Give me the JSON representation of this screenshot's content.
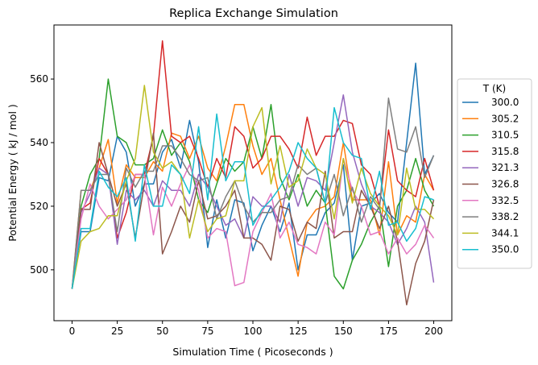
{
  "chart_data": {
    "type": "line",
    "title": "Replica Exchange Simulation",
    "xlabel": "Simulation Time ( Picoseconds )",
    "ylabel": "Potential Energy ( kJ / mol )",
    "xlim": [
      -10,
      210
    ],
    "ylim": [
      484,
      577
    ],
    "xticks": [
      0,
      25,
      50,
      75,
      100,
      125,
      150,
      175,
      200
    ],
    "yticks": [
      500,
      520,
      540,
      560
    ],
    "grid": false,
    "legend": {
      "title": "T (K)",
      "placement": "outside-right"
    },
    "x": [
      0,
      5,
      10,
      15,
      20,
      25,
      30,
      35,
      40,
      45,
      50,
      55,
      60,
      65,
      70,
      75,
      80,
      85,
      90,
      95,
      100,
      105,
      110,
      115,
      120,
      125,
      130,
      135,
      140,
      145,
      150,
      155,
      160,
      165,
      170,
      175,
      180,
      185,
      190,
      195,
      200
    ],
    "series": [
      {
        "name": "300.0",
        "color": "#1f77b4",
        "values": [
          494,
          512,
          512,
          529,
          528,
          542,
          537,
          520,
          527,
          527,
          537,
          541,
          532,
          547,
          534,
          507,
          522,
          510,
          522,
          521,
          506,
          514,
          520,
          512,
          521,
          500,
          511,
          511,
          518,
          521,
          533,
          503,
          520,
          521,
          524,
          518,
          515,
          540,
          565,
          530,
          536
        ]
      },
      {
        "name": "305.2",
        "color": "#ff7f0e",
        "values": [
          494,
          525,
          525,
          532,
          541,
          521,
          533,
          529,
          529,
          534,
          531,
          543,
          542,
          535,
          542,
          532,
          528,
          539,
          552,
          552,
          539,
          530,
          535,
          522,
          510,
          498,
          515,
          519,
          520,
          523,
          540,
          522,
          522,
          522,
          511,
          534,
          511,
          517,
          515,
          530,
          525
        ]
      },
      {
        "name": "310.5",
        "color": "#2ca02c",
        "values": [
          494,
          520,
          530,
          535,
          560,
          542,
          540,
          533,
          533,
          535,
          544,
          536,
          540,
          534,
          522,
          518,
          527,
          535,
          531,
          534,
          545,
          535,
          552,
          529,
          522,
          530,
          520,
          525,
          521,
          498,
          494,
          503,
          508,
          515,
          520,
          501,
          520,
          525,
          535,
          525,
          520
        ]
      },
      {
        "name": "315.8",
        "color": "#d62728",
        "values": [
          494,
          519,
          521,
          535,
          530,
          510,
          518,
          530,
          530,
          542,
          572,
          542,
          540,
          542,
          535,
          526,
          535,
          529,
          545,
          542,
          532,
          535,
          542,
          542,
          538,
          532,
          548,
          536,
          542,
          542,
          547,
          546,
          533,
          530,
          520,
          544,
          528,
          525,
          523,
          535,
          525
        ]
      },
      {
        "name": "321.3",
        "color": "#9467bd",
        "values": [
          494,
          518,
          524,
          532,
          530,
          508,
          525,
          522,
          525,
          520,
          528,
          525,
          525,
          520,
          530,
          526,
          520,
          514,
          516,
          510,
          523,
          520,
          520,
          515,
          530,
          520,
          529,
          528,
          525,
          540,
          555,
          537,
          527,
          520,
          518,
          515,
          508,
          513,
          520,
          515,
          496
        ]
      },
      {
        "name": "326.8",
        "color": "#8c564b",
        "values": [
          494,
          519,
          519,
          540,
          530,
          520,
          527,
          510,
          527,
          543,
          505,
          512,
          520,
          515,
          528,
          516,
          517,
          520,
          525,
          510,
          510,
          508,
          503,
          520,
          519,
          509,
          515,
          513,
          531,
          510,
          512,
          512,
          525,
          520,
          513,
          520,
          509,
          489,
          502,
          509,
          522
        ]
      },
      {
        "name": "332.5",
        "color": "#e377c2",
        "values": [
          494,
          516,
          527,
          520,
          516,
          519,
          522,
          530,
          530,
          511,
          526,
          520,
          527,
          533,
          525,
          510,
          513,
          512,
          495,
          496,
          512,
          518,
          524,
          510,
          515,
          508,
          507,
          505,
          515,
          511,
          535,
          525,
          520,
          511,
          512,
          505,
          510,
          505,
          508,
          514,
          510
        ]
      },
      {
        "name": "338.2",
        "color": "#7f7f7f",
        "values": [
          494,
          525,
          525,
          530,
          530,
          512,
          532,
          526,
          531,
          531,
          539,
          539,
          535,
          530,
          528,
          529,
          516,
          523,
          528,
          520,
          515,
          518,
          518,
          522,
          523,
          533,
          530,
          532,
          521,
          530,
          517,
          526,
          515,
          523,
          519,
          554,
          538,
          537,
          545,
          529,
          536
        ]
      },
      {
        "name": "344.1",
        "color": "#bcbd22",
        "values": [
          494,
          509,
          512,
          513,
          517,
          517,
          528,
          535,
          558,
          537,
          532,
          534,
          530,
          510,
          522,
          512,
          516,
          517,
          528,
          528,
          545,
          551,
          527,
          539,
          526,
          528,
          538,
          532,
          530,
          516,
          535,
          521,
          532,
          524,
          520,
          517,
          511,
          532,
          519,
          519,
          516
        ]
      },
      {
        "name": "350.0",
        "color": "#17becf",
        "values": [
          494,
          513,
          513,
          531,
          526,
          523,
          529,
          509,
          533,
          520,
          520,
          533,
          530,
          524,
          545,
          522,
          549,
          528,
          534,
          534,
          514,
          519,
          522,
          526,
          531,
          540,
          535,
          532,
          521,
          551,
          540,
          536,
          535,
          519,
          531,
          514,
          515,
          509,
          513,
          523,
          522
        ]
      }
    ]
  }
}
